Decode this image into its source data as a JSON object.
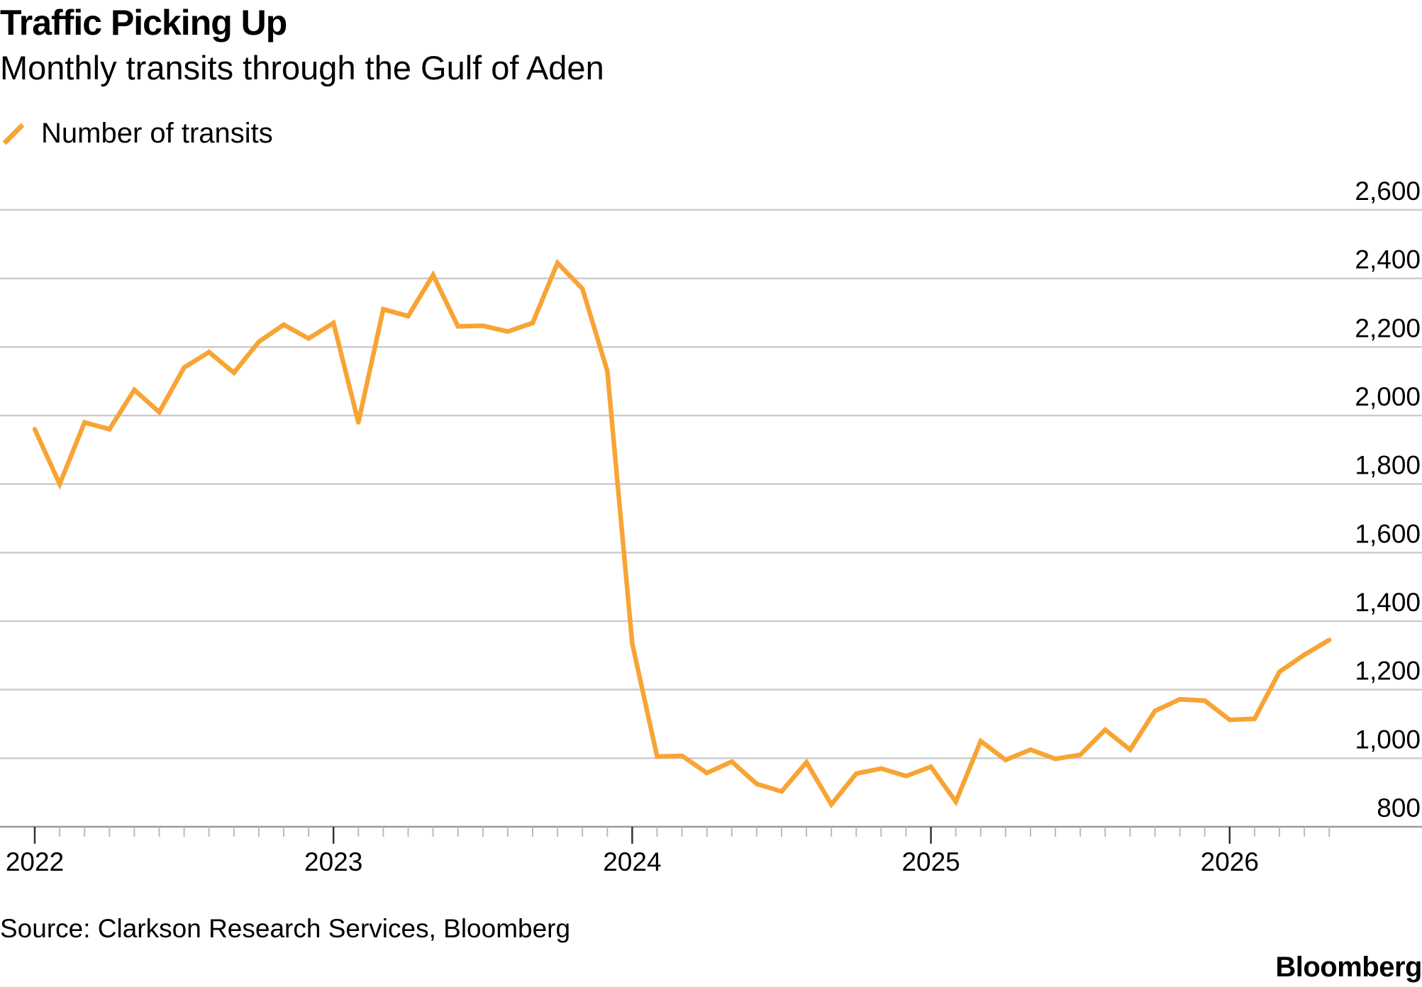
{
  "title": "Traffic Picking Up",
  "subtitle": "Monthly transits through the Gulf of Aden",
  "legend": {
    "label": "Number of transits",
    "icon": "diagonal-line-swatch"
  },
  "source": "Source: Clarkson Research Services, Bloomberg",
  "brand": "Bloomberg",
  "colors": {
    "series": "#f8a435",
    "grid": "#cccccc",
    "axis": "#999999",
    "text": "#000000"
  },
  "chart_data": {
    "type": "line",
    "title": "Traffic Picking Up",
    "subtitle": "Monthly transits through the Gulf of Aden",
    "xlabel": "",
    "ylabel": "",
    "ylim": [
      800,
      2600
    ],
    "yticks": [
      800,
      1000,
      1200,
      1400,
      1600,
      1800,
      2000,
      2200,
      2400,
      2600
    ],
    "ytick_labels": [
      "800",
      "1,000",
      "1,200",
      "1,400",
      "1,600",
      "1,800",
      "2,000",
      "2,200",
      "2,400",
      "2,600"
    ],
    "xlim": [
      "2022-01",
      "2026-12"
    ],
    "xtick_labels": [
      "2022",
      "2023",
      "2024",
      "2025",
      "2026"
    ],
    "y_axis_position": "right",
    "grid": true,
    "legend_position": "top-left",
    "series": [
      {
        "name": "Number of transits",
        "x": [
          "2022-01",
          "2022-02",
          "2022-03",
          "2022-04",
          "2022-05",
          "2022-06",
          "2022-07",
          "2022-08",
          "2022-09",
          "2022-10",
          "2022-11",
          "2022-12",
          "2023-01",
          "2023-02",
          "2023-03",
          "2023-04",
          "2023-05",
          "2023-06",
          "2023-07",
          "2023-08",
          "2023-09",
          "2023-10",
          "2023-11",
          "2023-12",
          "2024-01",
          "2024-02",
          "2024-03",
          "2024-04",
          "2024-05",
          "2024-06",
          "2024-07",
          "2024-08",
          "2024-09",
          "2024-10",
          "2024-11",
          "2024-12",
          "2025-01",
          "2025-02",
          "2025-03",
          "2025-04",
          "2025-05",
          "2025-06",
          "2025-07",
          "2025-08",
          "2025-09",
          "2025-10",
          "2025-11",
          "2025-12",
          "2026-01",
          "2026-02",
          "2026-03",
          "2026-04",
          "2026-05"
        ],
        "values": [
          1960,
          1800,
          1980,
          1960,
          2075,
          2010,
          2140,
          2185,
          2125,
          2215,
          2265,
          2225,
          2270,
          1980,
          2310,
          2290,
          2410,
          2260,
          2262,
          2245,
          2270,
          2445,
          2370,
          2130,
          1335,
          1005,
          1007,
          957,
          990,
          925,
          903,
          988,
          865,
          955,
          970,
          948,
          975,
          873,
          1050,
          995,
          1025,
          998,
          1010,
          1083,
          1025,
          1138,
          1172,
          1168,
          1112,
          1115,
          1252,
          1302,
          1345
        ]
      }
    ]
  }
}
